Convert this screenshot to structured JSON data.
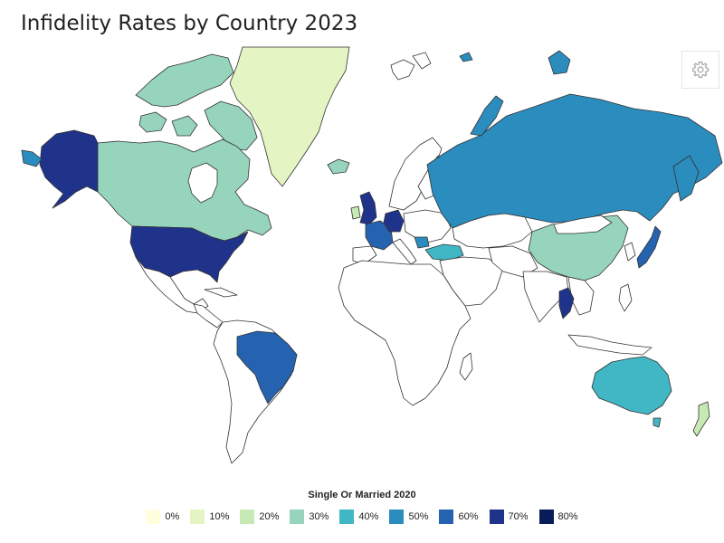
{
  "title": "Infidelity Rates by Country 2023",
  "settings_icon": "gear-icon",
  "colors": {
    "c0": "#ffffe0",
    "c10": "#e4f4c2",
    "c20": "#c7e9b4",
    "c30": "#96d4bc",
    "c40": "#41b6c4",
    "c50": "#2b8cbe",
    "c60": "#2563b0",
    "c70": "#20338a",
    "c80": "#081d58",
    "nodata": "#ffffff",
    "border": "#333333"
  },
  "legend": {
    "title": "Single Or Married 2020",
    "items": [
      {
        "label": "0%",
        "color": "#ffffe0"
      },
      {
        "label": "10%",
        "color": "#e4f4c2"
      },
      {
        "label": "20%",
        "color": "#c7e9b4"
      },
      {
        "label": "30%",
        "color": "#96d4bc"
      },
      {
        "label": "40%",
        "color": "#41b6c4"
      },
      {
        "label": "50%",
        "color": "#2b8cbe"
      },
      {
        "label": "60%",
        "color": "#2563b0"
      },
      {
        "label": "70%",
        "color": "#20338a"
      },
      {
        "label": "80%",
        "color": "#081d58"
      }
    ]
  }
}
